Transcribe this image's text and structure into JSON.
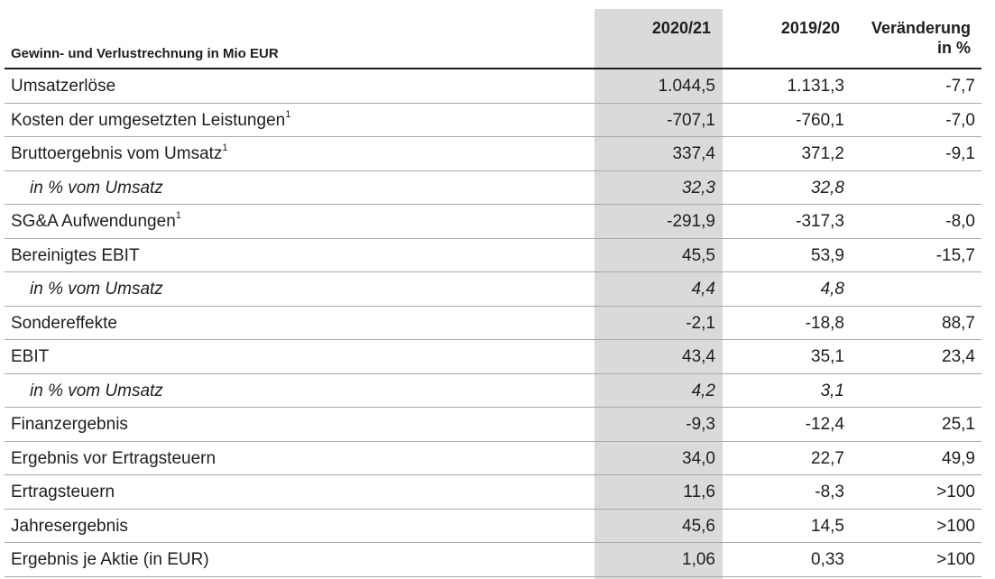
{
  "header": {
    "title": "Gewinn- und Verlustrechnung in Mio EUR",
    "col_2020": "2020/21",
    "col_2019": "2019/20",
    "col_change_line1": "Veränderung",
    "col_change_line2": "in %"
  },
  "rows": [
    {
      "label": "Umsatzerlöse",
      "sup": "",
      "v2020": "1.044,5",
      "v2019": "1.131,3",
      "change": "-7,7",
      "italic": false
    },
    {
      "label": "Kosten der umgesetzten Leistungen",
      "sup": "1",
      "v2020": "-707,1",
      "v2019": "-760,1",
      "change": "-7,0",
      "italic": false
    },
    {
      "label": "Bruttoergebnis vom Umsatz",
      "sup": "1",
      "v2020": "337,4",
      "v2019": "371,2",
      "change": "-9,1",
      "italic": false
    },
    {
      "label": "in % vom Umsatz",
      "sup": "",
      "v2020": "32,3",
      "v2019": "32,8",
      "change": "",
      "italic": true
    },
    {
      "label": "SG&A Aufwendungen",
      "sup": "1",
      "v2020": "-291,9",
      "v2019": "-317,3",
      "change": "-8,0",
      "italic": false
    },
    {
      "label": "Bereinigtes EBIT",
      "sup": "",
      "v2020": "45,5",
      "v2019": "53,9",
      "change": "-15,7",
      "italic": false
    },
    {
      "label": "in % vom Umsatz",
      "sup": "",
      "v2020": "4,4",
      "v2019": "4,8",
      "change": "",
      "italic": true
    },
    {
      "label": "Sondereffekte",
      "sup": "",
      "v2020": "-2,1",
      "v2019": "-18,8",
      "change": "88,7",
      "italic": false
    },
    {
      "label": "EBIT",
      "sup": "",
      "v2020": "43,4",
      "v2019": "35,1",
      "change": "23,4",
      "italic": false
    },
    {
      "label": "in % vom Umsatz",
      "sup": "",
      "v2020": "4,2",
      "v2019": "3,1",
      "change": "",
      "italic": true
    },
    {
      "label": "Finanzergebnis",
      "sup": "",
      "v2020": "-9,3",
      "v2019": "-12,4",
      "change": "25,1",
      "italic": false
    },
    {
      "label": "Ergebnis vor Ertragsteuern",
      "sup": "",
      "v2020": "34,0",
      "v2019": "22,7",
      "change": "49,9",
      "italic": false
    },
    {
      "label": "Ertragsteuern",
      "sup": "",
      "v2020": "11,6",
      "v2019": "-8,3",
      "change": ">100",
      "italic": false
    },
    {
      "label": "Jahresergebnis",
      "sup": "",
      "v2020": "45,6",
      "v2019": "14,5",
      "change": ">100",
      "italic": false
    },
    {
      "label": "Ergebnis je Aktie (in EUR)",
      "sup": "",
      "v2020": "1,06",
      "v2019": "0,33",
      "change": ">100",
      "italic": false
    }
  ],
  "colors": {
    "highlight_column": "#dadada",
    "rule": "#1e1e1e",
    "row_divider": "#a9a9a9"
  }
}
